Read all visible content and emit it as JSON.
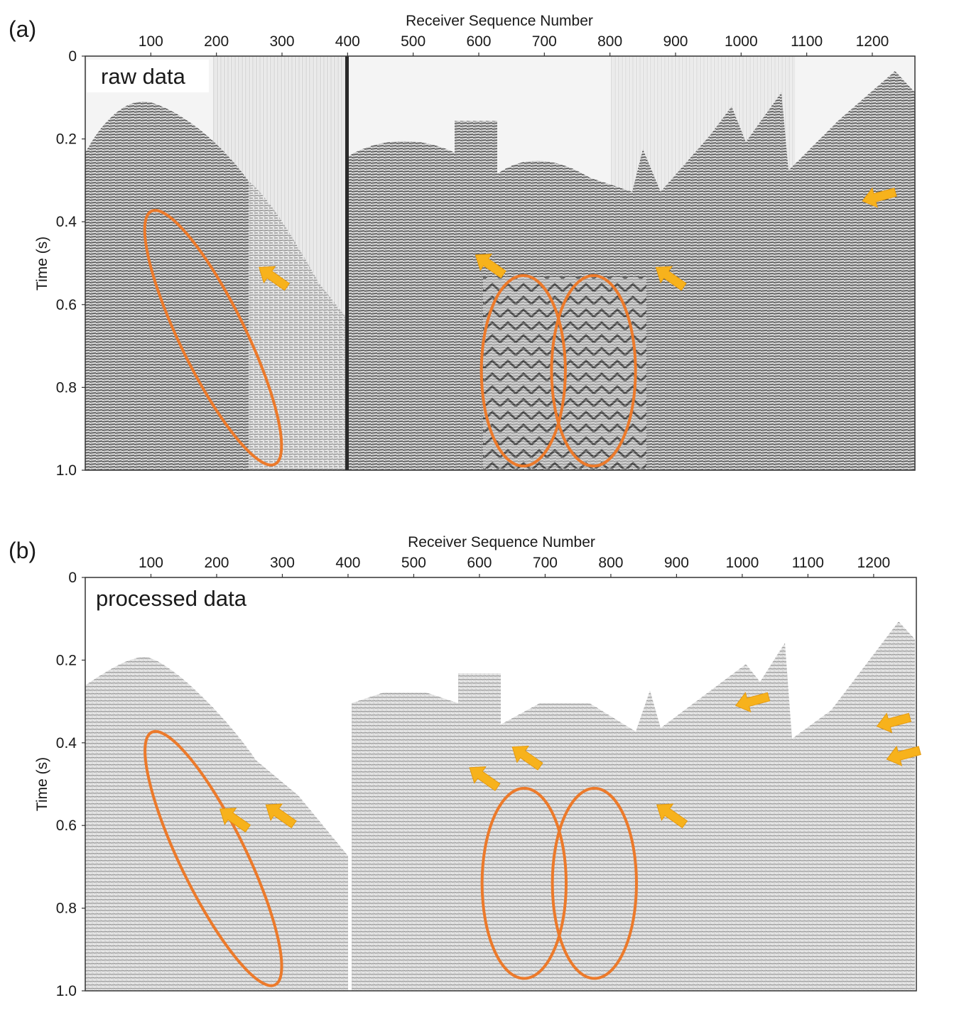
{
  "panels": [
    {
      "id": "a",
      "label": "(a)",
      "tag": "raw data",
      "xlabel": "Receiver Sequence Number",
      "ylabel": "Time (s)",
      "xticks": [
        100,
        200,
        300,
        400,
        500,
        600,
        700,
        800,
        900,
        1000,
        1100,
        1200
      ],
      "yticks": [
        "0",
        "0.2",
        "0.4",
        "0.6",
        "0.8",
        "1.0"
      ],
      "xlim": [
        0,
        1265
      ],
      "ylim": [
        0,
        1.0
      ],
      "ellipses": [
        {
          "cx": 195,
          "cy": 0.68,
          "rx": 50,
          "ry": 0.34,
          "angle": -26
        },
        {
          "cx": 668,
          "cy": 0.76,
          "rx": 64,
          "ry": 0.23,
          "angle": 0
        },
        {
          "cx": 775,
          "cy": 0.76,
          "rx": 64,
          "ry": 0.23,
          "angle": 0
        }
      ],
      "arrows": [
        {
          "x": 265,
          "y": 0.51,
          "dir": "nw"
        },
        {
          "x": 595,
          "y": 0.48,
          "dir": "nw"
        },
        {
          "x": 870,
          "y": 0.51,
          "dir": "nw"
        },
        {
          "x": 1185,
          "y": 0.35,
          "dir": "w"
        }
      ]
    },
    {
      "id": "b",
      "label": "(b)",
      "tag": "processed data",
      "xlabel": "Receiver Sequence Number",
      "ylabel": "Time (s)",
      "xticks": [
        100,
        200,
        300,
        400,
        500,
        600,
        700,
        800,
        900,
        1000,
        1100,
        1200
      ],
      "yticks": [
        "0",
        "0.2",
        "0.4",
        "0.6",
        "0.8",
        "1.0"
      ],
      "xlim": [
        0,
        1265
      ],
      "ylim": [
        0,
        1.0
      ],
      "ellipses": [
        {
          "cx": 195,
          "cy": 0.68,
          "rx": 50,
          "ry": 0.34,
          "angle": -26
        },
        {
          "cx": 668,
          "cy": 0.74,
          "rx": 64,
          "ry": 0.23,
          "angle": 0
        },
        {
          "cx": 775,
          "cy": 0.74,
          "rx": 64,
          "ry": 0.23,
          "angle": 0
        }
      ],
      "arrows": [
        {
          "x": 205,
          "y": 0.56,
          "dir": "nw"
        },
        {
          "x": 275,
          "y": 0.55,
          "dir": "nw"
        },
        {
          "x": 585,
          "y": 0.46,
          "dir": "nw"
        },
        {
          "x": 650,
          "y": 0.41,
          "dir": "nw"
        },
        {
          "x": 870,
          "y": 0.55,
          "dir": "nw"
        },
        {
          "x": 990,
          "y": 0.31,
          "dir": "w"
        },
        {
          "x": 1205,
          "y": 0.36,
          "dir": "w"
        },
        {
          "x": 1220,
          "y": 0.44,
          "dir": "w"
        }
      ]
    }
  ],
  "colors": {
    "ellipse": "#ec7a2b",
    "arrow": "#f7b21c",
    "frame": "#333333"
  }
}
